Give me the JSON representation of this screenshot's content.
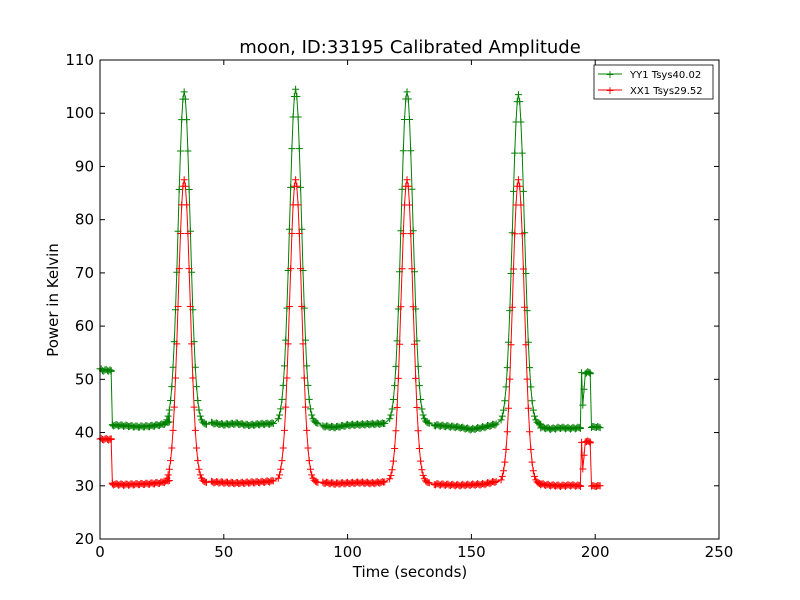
{
  "chart_data": {
    "type": "line",
    "title": "moon, ID:33195 Calibrated Amplitude",
    "xlabel": "Time (seconds)",
    "ylabel": "Power in Kelvin",
    "xlim": [
      0,
      250
    ],
    "ylim": [
      20,
      110
    ],
    "xticks": [
      0,
      50,
      100,
      150,
      200,
      250
    ],
    "yticks": [
      20,
      30,
      40,
      50,
      60,
      70,
      80,
      90,
      100,
      110
    ],
    "grid": false,
    "legend_position": "top-right",
    "marker": "+",
    "peak_times": [
      34,
      79,
      124,
      169
    ],
    "series": [
      {
        "name": "YY1 Tsys40.02",
        "color": "#008000",
        "segments": [
          {
            "x": [
              0,
              1,
              2,
              3,
              4,
              4.5
            ],
            "y": [
              52,
              51.6,
              51.8,
              51.6,
              51.8,
              51.5
            ]
          },
          {
            "x": [
              4.5,
              5
            ],
            "y": [
              51.5,
              41.5
            ]
          },
          {
            "x": [
              5,
              10,
              15,
              20,
              25,
              28
            ],
            "y": [
              41.4,
              41.3,
              41.1,
              41.2,
              41.5,
              42
            ]
          },
          {
            "peak": 34,
            "base": 41.5,
            "amplitude": 104
          },
          {
            "x": [
              45,
              50,
              55,
              60,
              65,
              70
            ],
            "y": [
              41.8,
              41.5,
              41.7,
              41.4,
              41.6,
              41.7
            ]
          },
          {
            "peak": 79,
            "base": 41.7,
            "amplitude": 104.5
          },
          {
            "x": [
              90,
              95,
              100,
              105,
              110,
              115
            ],
            "y": [
              41.2,
              41.0,
              41.4,
              41.5,
              41.6,
              41.7
            ]
          },
          {
            "peak": 124,
            "base": 41.7,
            "amplitude": 104
          },
          {
            "x": [
              135,
              140,
              145,
              150,
              155,
              160
            ],
            "y": [
              41.4,
              41.2,
              41.0,
              40.6,
              41.0,
              41.6
            ]
          },
          {
            "peak": 169,
            "base": 41.5,
            "amplitude": 103.5
          },
          {
            "x": [
              178,
              182,
              186,
              190,
              194
            ],
            "y": [
              41.0,
              40.7,
              40.9,
              40.8,
              40.9
            ]
          },
          {
            "x": [
              194,
              194.5,
              195,
              196,
              197,
              198
            ],
            "y": [
              40.9,
              51.3,
              45.0,
              51.2,
              51.3,
              51.2
            ]
          },
          {
            "x": [
              198,
              198.5,
              199,
              200,
              201,
              202
            ],
            "y": [
              51.2,
              41.0,
              41.0,
              41.1,
              41.0,
              40.9
            ]
          }
        ]
      },
      {
        "name": "XX1 Tsys29.52",
        "color": "#ff0000",
        "segments": [
          {
            "x": [
              0,
              1,
              2,
              3,
              4,
              4.5
            ],
            "y": [
              38.8,
              38.7,
              38.8,
              38.7,
              38.8,
              38.7
            ]
          },
          {
            "x": [
              4.5,
              5
            ],
            "y": [
              38.7,
              30.5
            ]
          },
          {
            "x": [
              5,
              10,
              15,
              20,
              25,
              28
            ],
            "y": [
              30.3,
              30.2,
              30.3,
              30.4,
              30.6,
              31
            ]
          },
          {
            "peak": 34,
            "base": 30.6,
            "amplitude": 87.5
          },
          {
            "x": [
              45,
              50,
              55,
              60,
              65,
              70
            ],
            "y": [
              30.7,
              30.6,
              30.5,
              30.6,
              30.7,
              30.9
            ]
          },
          {
            "peak": 79,
            "base": 30.6,
            "amplitude": 87.5
          },
          {
            "x": [
              90,
              95,
              100,
              105,
              110,
              115
            ],
            "y": [
              30.6,
              30.4,
              30.5,
              30.6,
              30.5,
              30.7
            ]
          },
          {
            "peak": 124,
            "base": 30.5,
            "amplitude": 87.5
          },
          {
            "x": [
              135,
              140,
              145,
              150,
              155,
              160
            ],
            "y": [
              30.3,
              30.2,
              30.1,
              30.2,
              30.3,
              30.8
            ]
          },
          {
            "peak": 169,
            "base": 30.3,
            "amplitude": 87.5
          },
          {
            "x": [
              178,
              182,
              186,
              190,
              194
            ],
            "y": [
              30.3,
              30.1,
              30.0,
              30.1,
              30.0
            ]
          },
          {
            "x": [
              194,
              194.5,
              195,
              196,
              197,
              198
            ],
            "y": [
              30.0,
              38.2,
              33.0,
              38.4,
              38.3,
              38.2
            ]
          },
          {
            "x": [
              198,
              198.5,
              199,
              200,
              201,
              202
            ],
            "y": [
              38.2,
              30.0,
              29.9,
              30.0,
              29.9,
              30.0
            ]
          }
        ]
      }
    ]
  }
}
